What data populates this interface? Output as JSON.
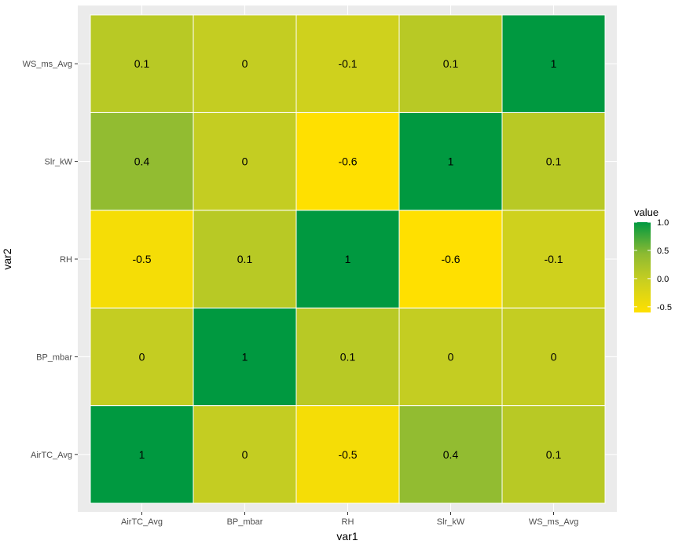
{
  "chart_data": {
    "type": "heatmap",
    "title": "",
    "xlabel": "var1",
    "ylabel": "var2",
    "x_categories": [
      "AirTC_Avg",
      "BP_mbar",
      "RH",
      "Slr_kW",
      "WS_ms_Avg"
    ],
    "y_categories": [
      "AirTC_Avg",
      "BP_mbar",
      "RH",
      "Slr_kW",
      "WS_ms_Avg"
    ],
    "values": [
      [
        1,
        0,
        -0.5,
        0.4,
        0.1
      ],
      [
        0,
        1,
        0.1,
        0,
        0
      ],
      [
        -0.5,
        0.1,
        1,
        -0.6,
        -0.1
      ],
      [
        0.4,
        0,
        -0.6,
        1,
        0.1
      ],
      [
        0.1,
        0,
        -0.1,
        0.1,
        1
      ]
    ],
    "value_labels": [
      [
        "1",
        "0",
        "-0.5",
        "0.4",
        "0.1"
      ],
      [
        "0",
        "1",
        "0.1",
        "0",
        "0"
      ],
      [
        "-0.5",
        "0.1",
        "1",
        "-0.6",
        "-0.1"
      ],
      [
        "0.4",
        "0",
        "-0.6",
        "1",
        "0.1"
      ],
      [
        "0.1",
        "0",
        "-0.1",
        "0.1",
        "1"
      ]
    ],
    "legend": {
      "title": "value",
      "position": "right",
      "ticks": [
        "1.0",
        "0.5",
        "0.0",
        "-0.5"
      ],
      "tick_values": [
        1.0,
        0.5,
        0.0,
        -0.5
      ],
      "range": [
        -0.6,
        1.0
      ]
    },
    "colors": {
      "low": "#ffe000",
      "high": "#009940",
      "panel_background": "#ebebeb",
      "grid": "#ffffff",
      "tile_border": "#ffffff"
    }
  }
}
